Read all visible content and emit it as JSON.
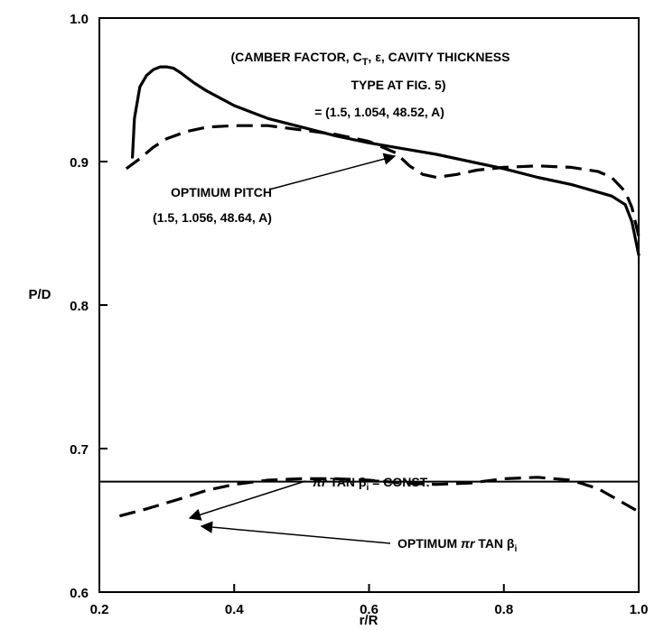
{
  "chart_data": {
    "type": "line",
    "title": "",
    "xlabel": "r/R",
    "ylabel": "P/D",
    "xlim": [
      0.2,
      1.0
    ],
    "ylim": [
      0.6,
      1.0
    ],
    "xticks": [
      "0.2",
      "0.4",
      "0.6",
      "0.8",
      "1.0"
    ],
    "yticks": [
      "0.6",
      "0.7",
      "0.8",
      "0.9",
      "1.0"
    ],
    "grid": false,
    "series": [
      {
        "style": "solid",
        "x": [
          0.249,
          0.252,
          0.26,
          0.27,
          0.28,
          0.29,
          0.3,
          0.31,
          0.32,
          0.34,
          0.36,
          0.4,
          0.45,
          0.5,
          0.55,
          0.6,
          0.65,
          0.7,
          0.75,
          0.8,
          0.85,
          0.9,
          0.93,
          0.96,
          0.98,
          0.99,
          1.0
        ],
        "y": [
          0.903,
          0.93,
          0.952,
          0.96,
          0.964,
          0.966,
          0.966,
          0.965,
          0.962,
          0.955,
          0.949,
          0.939,
          0.93,
          0.924,
          0.918,
          0.913,
          0.909,
          0.905,
          0.9,
          0.895,
          0.889,
          0.884,
          0.88,
          0.876,
          0.87,
          0.858,
          0.835
        ]
      },
      {
        "style": "dashed",
        "x": [
          0.24,
          0.26,
          0.28,
          0.3,
          0.33,
          0.36,
          0.4,
          0.45,
          0.5,
          0.55,
          0.6,
          0.64,
          0.66,
          0.68,
          0.7,
          0.73,
          0.76,
          0.8,
          0.85,
          0.9,
          0.94,
          0.96,
          0.98,
          0.99,
          1.0
        ],
        "y": [
          0.895,
          0.902,
          0.91,
          0.916,
          0.921,
          0.924,
          0.925,
          0.925,
          0.922,
          0.919,
          0.914,
          0.906,
          0.897,
          0.891,
          0.889,
          0.891,
          0.894,
          0.896,
          0.897,
          0.896,
          0.893,
          0.889,
          0.879,
          0.868,
          0.848
        ]
      },
      {
        "style": "const",
        "x": [
          0.2,
          1.0
        ],
        "y": [
          0.677,
          0.677
        ]
      },
      {
        "style": "dashed",
        "x": [
          0.23,
          0.27,
          0.32,
          0.36,
          0.4,
          0.45,
          0.5,
          0.55,
          0.6,
          0.65,
          0.7,
          0.75,
          0.8,
          0.85,
          0.9,
          0.94,
          0.97,
          1.0
        ],
        "y": [
          0.653,
          0.658,
          0.665,
          0.671,
          0.675,
          0.678,
          0.679,
          0.679,
          0.678,
          0.676,
          0.675,
          0.676,
          0.679,
          0.68,
          0.678,
          0.672,
          0.664,
          0.656
        ]
      }
    ],
    "annotations": [
      {
        "id": "camber",
        "lines": [
          [
            "(CAMBER FACTOR, C",
            "T",
            ", ",
            "ε",
            ", CAVITY THICKNESS"
          ],
          [
            "TYPE AT FIG. 5)"
          ],
          [
            "= (1.5, 1.054, 48.52, A)"
          ]
        ]
      },
      {
        "id": "optimum-pitch",
        "lines": [
          [
            "OPTIMUM PITCH"
          ],
          [
            "(1.5, 1.056, 48.64, A)"
          ]
        ]
      },
      {
        "id": "const-label",
        "parts": [
          "πr",
          " TAN β",
          "i",
          " = CONST."
        ]
      },
      {
        "id": "optimum-label",
        "parts": [
          "OPTIMUM ",
          "πr",
          " TAN β",
          "i"
        ]
      }
    ]
  }
}
